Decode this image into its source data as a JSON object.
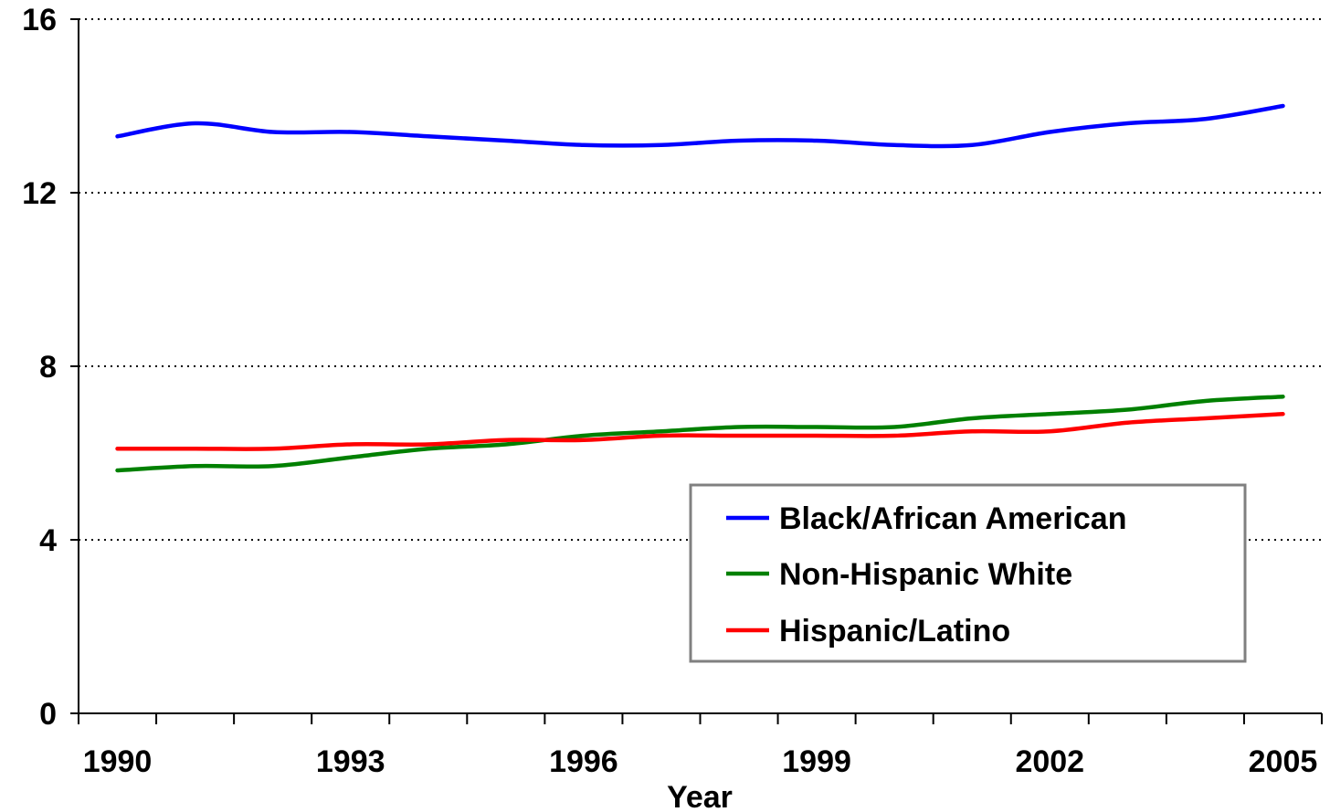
{
  "chart_data": {
    "type": "line",
    "title": "",
    "xlabel": "Year",
    "ylabel": "",
    "ylim": [
      0,
      16
    ],
    "yticks": [
      "0",
      "4",
      "8",
      "12",
      "16"
    ],
    "xlim": [
      1990,
      2005
    ],
    "xtick_labels": [
      "1990",
      "1993",
      "1996",
      "1999",
      "2002",
      "2005"
    ],
    "grid": "horizontal dotted",
    "legend_position": "lower-right",
    "x": [
      1990,
      1991,
      1992,
      1993,
      1994,
      1995,
      1996,
      1997,
      1998,
      1999,
      2000,
      2001,
      2002,
      2003,
      2004,
      2005
    ],
    "series": [
      {
        "name": "Black/African American",
        "color": "#0000ff",
        "values": [
          13.3,
          13.6,
          13.4,
          13.4,
          13.3,
          13.2,
          13.1,
          13.1,
          13.2,
          13.2,
          13.1,
          13.1,
          13.4,
          13.6,
          13.7,
          14.0
        ]
      },
      {
        "name": "Non-Hispanic White",
        "color": "#008000",
        "values": [
          5.6,
          5.7,
          5.7,
          5.9,
          6.1,
          6.2,
          6.4,
          6.5,
          6.6,
          6.6,
          6.6,
          6.8,
          6.9,
          7.0,
          7.2,
          7.3
        ]
      },
      {
        "name": "Hispanic/Latino",
        "color": "#ff0000",
        "values": [
          6.1,
          6.1,
          6.1,
          6.2,
          6.2,
          6.3,
          6.3,
          6.4,
          6.4,
          6.4,
          6.4,
          6.5,
          6.5,
          6.7,
          6.8,
          6.9
        ]
      }
    ]
  }
}
